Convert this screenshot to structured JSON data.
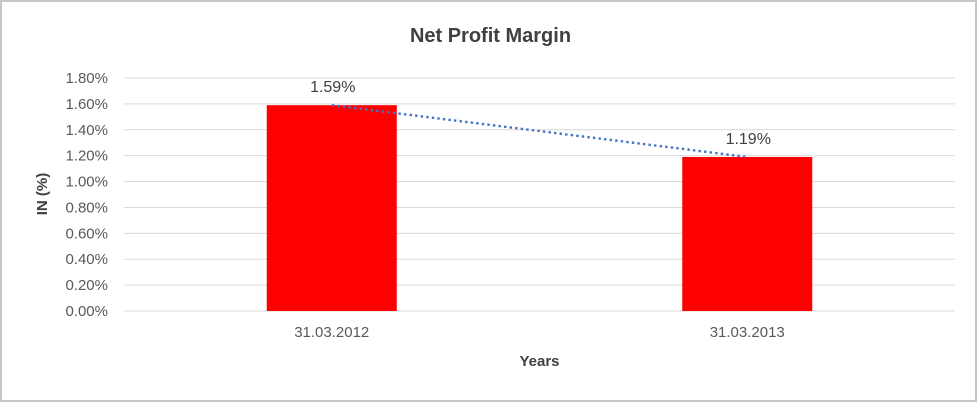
{
  "window": {
    "background": "#FFFFFF",
    "frame_border_color": "#C6C6C6"
  },
  "chart_data": {
    "type": "bar",
    "title": "Net Profit Margin",
    "xlabel": "Years",
    "ylabel": "IN (%)",
    "categories": [
      "31.03.2012",
      "31.03.2013"
    ],
    "values": [
      1.59,
      1.19
    ],
    "data_labels": [
      "1.59%",
      "1.19%"
    ],
    "ylim": [
      0,
      1.8
    ],
    "ytick_step": 0.2,
    "ytick_labels": [
      "0.00%",
      "0.20%",
      "0.40%",
      "0.60%",
      "0.80%",
      "1.00%",
      "1.20%",
      "1.40%",
      "1.60%",
      "1.80%"
    ],
    "grid": true,
    "legend": "none",
    "bar_color": "#FF0000",
    "gridline_color": "#D9D9D9",
    "tick_label_color": "#595959",
    "data_label_color": "#404040",
    "title_color": "#404040",
    "trendline": {
      "type": "linear",
      "style": "dotted",
      "color": "#4472C4",
      "points": [
        1.59,
        1.19
      ]
    }
  }
}
